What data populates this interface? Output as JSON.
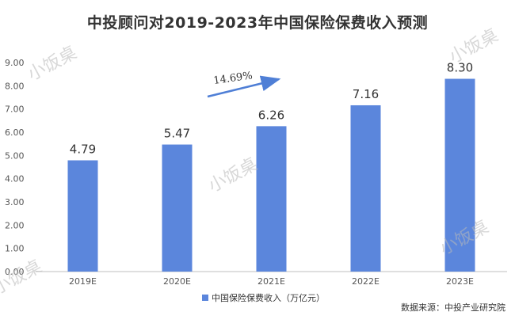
{
  "chart_data": {
    "type": "bar",
    "title": "中投顾问对2019-2023年中国保险保费收入预测",
    "categories": [
      "2019E",
      "2020E",
      "2021E",
      "2022E",
      "2023E"
    ],
    "series": [
      {
        "name": "中国保险保费收入（万亿元）",
        "values": [
          4.79,
          5.47,
          6.26,
          7.16,
          8.3
        ],
        "color": "#5b86dc"
      }
    ],
    "data_labels": [
      "4.79",
      "5.47",
      "6.26",
      "7.16",
      "8.30"
    ],
    "ylim": [
      0,
      9
    ],
    "yticks": [
      "0.00",
      "1.00",
      "2.00",
      "3.00",
      "4.00",
      "5.00",
      "6.00",
      "7.00",
      "8.00",
      "9.00"
    ],
    "annotation": "14.69%",
    "legend_position": "bottom-left",
    "grid": false
  },
  "source": "数据来源：中投产业研究院",
  "watermark": "小饭桌",
  "colors": {
    "bar": "#5b86dc",
    "arrow": "#4f7fd6",
    "axis": "#bfbfbf"
  }
}
